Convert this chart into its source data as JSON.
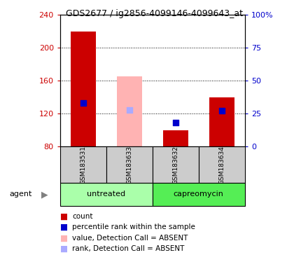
{
  "title": "GDS2677 / ig2856-4099146-4099643_at",
  "samples": [
    "GSM183531",
    "GSM183633",
    "GSM183632",
    "GSM183634"
  ],
  "ylim_left": [
    80,
    240
  ],
  "ylim_right": [
    0,
    100
  ],
  "yticks_left": [
    80,
    120,
    160,
    200,
    240
  ],
  "yticks_right": [
    0,
    25,
    50,
    75,
    100
  ],
  "bar_bottom": 80,
  "bars": [
    {
      "type": "present",
      "value": 220,
      "rank_pct": 33
    },
    {
      "type": "absent",
      "value": 165,
      "rank_pct": 28
    },
    {
      "type": "present",
      "value": 100,
      "rank_pct": 18
    },
    {
      "type": "present",
      "value": 140,
      "rank_pct": 27
    }
  ],
  "color_present_bar": "#cc0000",
  "color_absent_bar": "#ffb3b3",
  "color_present_rank": "#0000cc",
  "color_absent_rank": "#aaaaff",
  "color_ytick_left": "#cc0000",
  "color_ytick_right": "#0000cc",
  "bar_width": 0.55,
  "group_spans": [
    {
      "label": "untreated",
      "start": 0,
      "end": 1,
      "color": "#aaffaa"
    },
    {
      "label": "capreomycin",
      "start": 2,
      "end": 3,
      "color": "#55ee55"
    }
  ],
  "bg_label_row": "#cccccc",
  "legend_labels": [
    "count",
    "percentile rank within the sample",
    "value, Detection Call = ABSENT",
    "rank, Detection Call = ABSENT"
  ],
  "legend_colors": [
    "#cc0000",
    "#0000cc",
    "#ffb3b3",
    "#aaaaff"
  ]
}
